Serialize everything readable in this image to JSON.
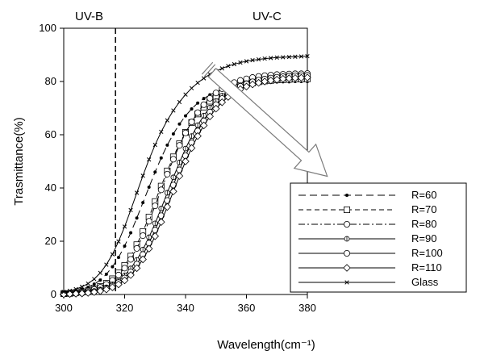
{
  "chart_data": {
    "type": "line",
    "title": "",
    "xlabel": "Wavelength(cm⁻¹)",
    "ylabel": "Trasmittance(%)",
    "xlim": [
      300,
      380
    ],
    "ylim": [
      0,
      100
    ],
    "xticks": [
      300,
      320,
      340,
      360,
      380
    ],
    "yticks": [
      0,
      20,
      40,
      60,
      80,
      100
    ],
    "grid": false,
    "legend_position": "bottom-right",
    "annotations": [
      {
        "text": "UV-B",
        "kind": "region-label"
      },
      {
        "text": "UV-C",
        "kind": "region-label"
      },
      {
        "kind": "vertical-dashed-line",
        "x": 317
      },
      {
        "kind": "arrow",
        "description": "increasing R direction"
      }
    ],
    "x": [
      300,
      302,
      304,
      306,
      308,
      310,
      312,
      314,
      316,
      318,
      320,
      322,
      324,
      326,
      328,
      330,
      332,
      334,
      336,
      338,
      340,
      342,
      344,
      346,
      348,
      350,
      352,
      354,
      356,
      358,
      360,
      362,
      364,
      366,
      368,
      370,
      372,
      374,
      376,
      378,
      380
    ],
    "series": [
      {
        "name": "R=60",
        "marker": "filled-dot",
        "dash": "long-dash",
        "values": [
          0.6,
          0.9,
          1.3,
          1.9,
          2.7,
          3.9,
          5.4,
          7.6,
          10.4,
          13.9,
          18.2,
          23.2,
          28.7,
          34.5,
          40.3,
          46.0,
          51.3,
          56.1,
          60.3,
          64.0,
          67.1,
          69.7,
          71.9,
          73.6,
          75.0,
          76.1,
          77.0,
          77.7,
          78.2,
          78.6,
          79.0,
          79.2,
          79.4,
          79.6,
          79.7,
          79.8,
          79.9,
          79.9,
          80.0,
          80.0,
          80.0
        ]
      },
      {
        "name": "R=70",
        "marker": "open-square",
        "dash": "dash",
        "values": [
          0.3,
          0.4,
          0.7,
          1.0,
          1.4,
          2.1,
          3.0,
          4.2,
          5.9,
          8.1,
          10.9,
          14.4,
          18.7,
          23.6,
          29.1,
          34.9,
          40.7,
          46.4,
          51.7,
          56.6,
          60.9,
          64.6,
          67.8,
          70.4,
          72.6,
          74.4,
          75.8,
          76.9,
          77.8,
          78.5,
          79.1,
          79.5,
          79.9,
          80.2,
          80.4,
          80.6,
          80.7,
          80.8,
          80.9,
          80.9,
          81.0
        ]
      },
      {
        "name": "R=80",
        "marker": "open-circle",
        "dash": "dash-dot",
        "values": [
          0.3,
          0.4,
          0.6,
          0.9,
          1.3,
          1.9,
          2.7,
          3.8,
          5.3,
          7.3,
          9.9,
          13.2,
          17.3,
          22.1,
          27.5,
          33.3,
          39.3,
          45.2,
          50.8,
          56.0,
          60.7,
          64.8,
          68.3,
          71.3,
          73.7,
          75.7,
          77.3,
          78.6,
          79.6,
          80.4,
          81.0,
          81.5,
          81.9,
          82.2,
          82.4,
          82.6,
          82.7,
          82.8,
          82.9,
          82.9,
          83.0
        ]
      },
      {
        "name": "R=90",
        "marker": "crossed-circle",
        "dash": "solid",
        "values": [
          0.2,
          0.3,
          0.4,
          0.6,
          0.9,
          1.3,
          1.9,
          2.7,
          3.8,
          5.3,
          7.2,
          9.8,
          13.0,
          16.9,
          21.5,
          26.7,
          32.3,
          38.2,
          44.0,
          49.6,
          54.8,
          59.5,
          63.6,
          67.2,
          70.2,
          72.7,
          74.7,
          76.3,
          77.6,
          78.6,
          79.4,
          80.0,
          80.5,
          80.9,
          81.2,
          81.4,
          81.6,
          81.7,
          81.8,
          81.9,
          82.0
        ]
      },
      {
        "name": "R=100",
        "marker": "open-circle",
        "dash": "solid",
        "values": [
          0.2,
          0.3,
          0.4,
          0.5,
          0.8,
          1.1,
          1.6,
          2.3,
          3.2,
          4.5,
          6.2,
          8.5,
          11.4,
          15.0,
          19.3,
          24.2,
          29.6,
          35.3,
          41.1,
          46.8,
          52.1,
          57.0,
          61.4,
          65.2,
          68.5,
          71.3,
          73.6,
          75.5,
          77.0,
          78.2,
          79.1,
          79.9,
          80.5,
          80.9,
          81.3,
          81.6,
          81.8,
          82.0,
          82.1,
          82.2,
          82.3
        ]
      },
      {
        "name": "R=110",
        "marker": "open-diamond",
        "dash": "solid",
        "values": [
          0.1,
          0.2,
          0.3,
          0.4,
          0.6,
          0.9,
          1.3,
          1.9,
          2.7,
          3.8,
          5.3,
          7.3,
          9.9,
          13.2,
          17.2,
          21.9,
          27.2,
          32.9,
          38.7,
          44.5,
          50.0,
          55.0,
          59.5,
          63.5,
          66.9,
          69.8,
          72.2,
          74.2,
          75.8,
          77.1,
          78.1,
          78.9,
          79.5,
          80.0,
          80.4,
          80.7,
          81.0,
          81.2,
          81.3,
          81.4,
          81.5
        ]
      },
      {
        "name": "Glass",
        "marker": "x-cross",
        "dash": "solid",
        "values": [
          1.0,
          1.4,
          2.0,
          2.9,
          4.1,
          5.8,
          8.1,
          11.2,
          15.1,
          19.9,
          25.5,
          31.7,
          38.2,
          44.6,
          50.7,
          56.2,
          61.1,
          65.4,
          69.1,
          72.3,
          75.1,
          77.5,
          79.5,
          81.2,
          82.7,
          83.9,
          84.9,
          85.8,
          86.5,
          87.1,
          87.6,
          88.0,
          88.3,
          88.6,
          88.8,
          89.0,
          89.1,
          89.2,
          89.3,
          89.4,
          89.5
        ]
      }
    ]
  },
  "labels": {
    "uvb": "UV-B",
    "uvc": "UV-C",
    "xlabel": "Wavelength(cm⁻¹)",
    "ylabel": "Trasmittance(%)"
  }
}
